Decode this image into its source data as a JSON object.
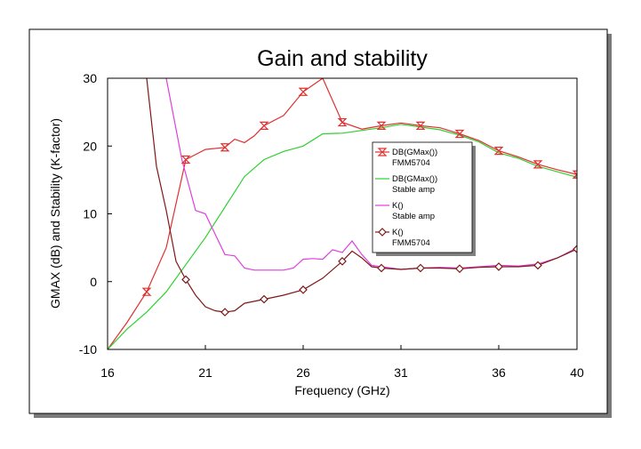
{
  "chart_data": {
    "type": "line",
    "title": "Gain and stability",
    "xlabel": "Frequency (GHz)",
    "ylabel": "GMAX (dB) and Stability (K-factor)",
    "xlim": [
      16,
      40
    ],
    "ylim": [
      -10,
      30
    ],
    "xticks": [
      "16",
      "21",
      "26",
      "31",
      "36",
      "40"
    ],
    "xtick_values": [
      16,
      21,
      26,
      31,
      36,
      40
    ],
    "yticks": [
      "-10",
      "0",
      "10",
      "20",
      "30"
    ],
    "ytick_values": [
      -10,
      0,
      10,
      20,
      30
    ],
    "legend_position": "center-right",
    "grid": false,
    "series": [
      {
        "name": "DB(GMax())\nFMM5704",
        "color": "#e03030",
        "marker": "hourglass",
        "x": [
          16,
          17,
          18,
          19,
          20,
          21,
          22,
          22.5,
          23,
          23.5,
          24,
          25,
          26,
          26.5,
          27,
          28,
          29,
          30,
          31,
          32,
          33,
          34,
          35,
          36,
          37,
          38,
          39,
          40
        ],
        "y": [
          -10,
          -6,
          -1.5,
          5,
          18,
          19.5,
          19.8,
          21,
          20.5,
          21.5,
          23,
          24.5,
          28,
          29,
          30,
          23.5,
          22.5,
          23,
          23.4,
          23,
          22.7,
          21.8,
          20.8,
          19.3,
          18.4,
          17.3,
          16.5,
          15.8
        ],
        "marker_x": [
          18,
          20,
          22,
          24,
          26,
          28,
          30,
          32,
          34,
          36,
          38,
          40
        ]
      },
      {
        "name": "DB(GMax())\nStable amp",
        "color": "#30d030",
        "marker": "none",
        "x": [
          16,
          17,
          18,
          19,
          20,
          21,
          22,
          23,
          24,
          25,
          26,
          27,
          28,
          29,
          30,
          31,
          32,
          33,
          34,
          35,
          36,
          37,
          38,
          39,
          40
        ],
        "y": [
          -10,
          -7,
          -4.5,
          -1.5,
          2.5,
          6.5,
          11,
          15.5,
          18,
          19.2,
          20,
          21.8,
          21.9,
          22.3,
          22.7,
          23.2,
          22.8,
          22.4,
          21.6,
          20.6,
          19,
          18.2,
          17,
          16.2,
          15.4
        ]
      },
      {
        "name": "K()\nStable amp",
        "color": "#dd40dd",
        "marker": "none",
        "x": [
          19,
          19.8,
          20.5,
          21,
          21.5,
          22,
          22.5,
          23,
          23.5,
          24,
          25,
          25.5,
          26,
          26.5,
          27,
          27.5,
          28,
          28.5,
          29,
          29.5,
          30,
          31,
          32,
          33,
          34,
          35,
          36,
          37,
          38,
          39,
          40
        ],
        "y": [
          30,
          18,
          10.5,
          10,
          7,
          4,
          3.8,
          2,
          1.7,
          1.7,
          1.7,
          2,
          3.3,
          3.4,
          3.3,
          4.7,
          4.3,
          6,
          4,
          2.4,
          2.2,
          1.8,
          2,
          2.1,
          2,
          2.2,
          2.4,
          2.3,
          2.6,
          3.5,
          5
        ]
      },
      {
        "name": "K()\nFMM5704",
        "color": "#801818",
        "marker": "diamond",
        "x": [
          18,
          18.5,
          19,
          19.5,
          20,
          20.5,
          21,
          21.5,
          22,
          22.5,
          23,
          24,
          25,
          26,
          27,
          28,
          28.5,
          29,
          29.5,
          30,
          31,
          32,
          33,
          34,
          35,
          36,
          37,
          38,
          39,
          40
        ],
        "y": [
          30,
          17,
          10.5,
          3,
          0.3,
          -2,
          -3.7,
          -4.3,
          -4.5,
          -4.3,
          -3.2,
          -2.6,
          -2,
          -1.2,
          0.5,
          3,
          4.5,
          3.5,
          2.2,
          2,
          1.8,
          2,
          2,
          1.9,
          2.1,
          2.2,
          2.2,
          2.4,
          3.5,
          4.8
        ],
        "marker_x": [
          20,
          22,
          24,
          26,
          28,
          30,
          32,
          34,
          36,
          38,
          40
        ]
      }
    ]
  }
}
